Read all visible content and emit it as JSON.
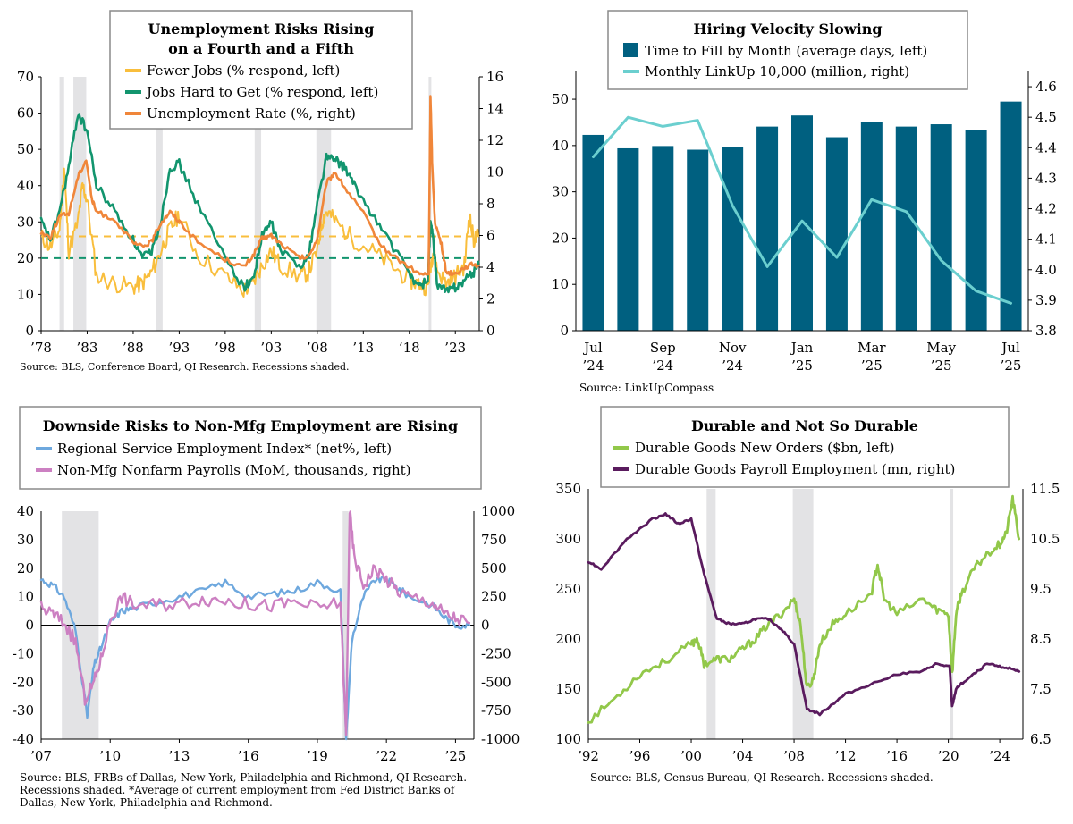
{
  "colors": {
    "yellow": "#F9BE3C",
    "green": "#12956E",
    "orange": "#F0863A",
    "teal": "#006080",
    "cyan": "#6BCFCF",
    "blue": "#6EA8DE",
    "pink": "#CC80C2",
    "lime": "#92C84A",
    "purple": "#5A1B5E",
    "recession": "#E3E3E5"
  },
  "chart_data": [
    {
      "type": "line",
      "title": "Unemployment Risks Rising on a Fourth and a Fifth",
      "title_lines": [
        "Unemployment Risks Rising",
        "on a Fourth and a Fifth"
      ],
      "x_ticks": [
        "’78",
        "’83",
        "’88",
        "’93",
        "’98",
        "’03",
        "’08",
        "’13",
        "’18",
        "’23"
      ],
      "x_range": [
        1978,
        2025.6
      ],
      "y_left_ticks": [
        "0",
        "10",
        "20",
        "30",
        "40",
        "50",
        "60",
        "70"
      ],
      "ylim_left": [
        0,
        70
      ],
      "y_right_ticks": [
        "0",
        "2",
        "4",
        "6",
        "8",
        "10",
        "12",
        "14",
        "16"
      ],
      "ylim_right": [
        0,
        16
      ],
      "recessions": [
        [
          1980.0,
          1980.5
        ],
        [
          1981.5,
          1982.9
        ],
        [
          1990.5,
          1991.2
        ],
        [
          2001.2,
          2001.9
        ],
        [
          2007.9,
          2009.5
        ],
        [
          2020.1,
          2020.3
        ]
      ],
      "reference_lines": [
        {
          "value": 26,
          "axis": "left",
          "series": "Fewer Jobs"
        },
        {
          "value": 20,
          "axis": "left",
          "series": "Jobs Hard to Get"
        }
      ],
      "series": [
        {
          "name": "Fewer Jobs (% respond, left)",
          "axis": "left",
          "x": [
            1978,
            1979,
            1980,
            1980.5,
            1981,
            1982,
            1982.5,
            1983,
            1984,
            1986,
            1988,
            1989,
            1990,
            1991,
            1992,
            1993,
            1995,
            1998,
            2000,
            2001,
            2002,
            2003,
            2004,
            2006,
            2007,
            2008,
            2008.5,
            2009,
            2010,
            2012,
            2014,
            2016,
            2018,
            2019,
            2020,
            2020.3,
            2020.6,
            2021,
            2022,
            2023,
            2024,
            2024.5,
            2025,
            2025.5
          ],
          "y": [
            26,
            23,
            28,
            45,
            22,
            30,
            40,
            36,
            15,
            13,
            12,
            13,
            16,
            22,
            28,
            32,
            21,
            15,
            11,
            13,
            18,
            22,
            18,
            15,
            16,
            22,
            30,
            33,
            30,
            25,
            22,
            18,
            14,
            13,
            12,
            18,
            22,
            17,
            13,
            15,
            18,
            32,
            25,
            26
          ]
        },
        {
          "name": "Jobs Hard to Get (% respond, left)",
          "axis": "left",
          "x": [
            1978,
            1979,
            1980,
            1981,
            1982,
            1983,
            1984,
            1986,
            1988,
            1989,
            1990,
            1991,
            1992,
            1993,
            1995,
            1998,
            2000,
            2001,
            2002,
            2003,
            2004,
            2006,
            2007,
            2008,
            2009,
            2010,
            2011,
            2012,
            2014,
            2016,
            2018,
            2019,
            2020,
            2020.3,
            2020.6,
            2021,
            2022,
            2023,
            2024,
            2025,
            2025.5
          ],
          "y": [
            30,
            25,
            33,
            45,
            60,
            55,
            40,
            33,
            25,
            20,
            22,
            30,
            45,
            46,
            35,
            20,
            12,
            14,
            26,
            30,
            22,
            18,
            20,
            35,
            48,
            47,
            45,
            40,
            32,
            24,
            16,
            12,
            14,
            30,
            25,
            13,
            11,
            12,
            14,
            16,
            19
          ]
        },
        {
          "name": "Unemployment Rate (%, right)",
          "axis": "right",
          "x": [
            1978,
            1979,
            1980,
            1981,
            1982,
            1982.9,
            1983.5,
            1984,
            1986,
            1988,
            1989,
            1990,
            1991,
            1992,
            1993,
            1995,
            1998,
            2000,
            2001,
            2002,
            2003,
            2004,
            2006,
            2007,
            2008,
            2009,
            2009.9,
            2011,
            2013,
            2015,
            2017,
            2019,
            2020.1,
            2020.3,
            2020.5,
            2020.8,
            2021.5,
            2022,
            2023,
            2024,
            2025,
            2025.5
          ],
          "y": [
            6.2,
            5.9,
            7.2,
            7.4,
            9.7,
            10.8,
            8.3,
            7.5,
            7.0,
            5.5,
            5.3,
            5.6,
            6.8,
            7.5,
            6.9,
            5.6,
            4.5,
            4.0,
            4.7,
            5.8,
            6.0,
            5.5,
            4.6,
            4.6,
            5.8,
            9.3,
            10.0,
            9.0,
            7.4,
            5.3,
            4.4,
            3.6,
            3.5,
            14.8,
            10.2,
            6.8,
            5.4,
            3.7,
            3.6,
            4.0,
            4.2,
            4.1
          ]
        }
      ],
      "source": "Source: BLS, Conference Board, QI Research. Recessions shaded."
    },
    {
      "type": "bar",
      "title": "Hiring Velocity Slowing",
      "x_ticks": [
        [
          "Jul",
          "’24"
        ],
        [
          "Sep",
          "’24"
        ],
        [
          "Nov",
          "’24"
        ],
        [
          "Jan",
          "’25"
        ],
        [
          "Mar",
          "’25"
        ],
        [
          "May",
          "’25"
        ],
        [
          "Jul",
          "’25"
        ]
      ],
      "categories": [
        "Jul ’24",
        "Aug ’24",
        "Sep ’24",
        "Oct ’24",
        "Nov ’24",
        "Dec ’24",
        "Jan ’25",
        "Feb ’25",
        "Mar ’25",
        "Apr ’25",
        "May ’25",
        "Jun ’25",
        "Jul ’25"
      ],
      "y_left_ticks": [
        "0",
        "10",
        "20",
        "30",
        "40",
        "50"
      ],
      "ylim_left": [
        0,
        56
      ],
      "y_right_ticks": [
        "3.8",
        "3.9",
        "4.0",
        "4.1",
        "4.2",
        "4.3",
        "4.4",
        "4.5",
        "4.6"
      ],
      "ylim_right": [
        3.8,
        4.65
      ],
      "series": [
        {
          "name": "Time to Fill by Month (average days, left)",
          "axis": "left",
          "kind": "bar",
          "values": [
            42.3,
            39.4,
            39.9,
            39.1,
            39.6,
            44.1,
            46.5,
            41.8,
            45.0,
            44.1,
            44.6,
            43.3,
            49.5
          ]
        },
        {
          "name": "Monthly LinkUp 10,000 (million, right)",
          "axis": "right",
          "kind": "line",
          "values": [
            4.37,
            4.5,
            4.47,
            4.49,
            4.21,
            4.01,
            4.16,
            4.04,
            4.23,
            4.19,
            4.03,
            3.93,
            3.89
          ]
        }
      ],
      "source": "Source: LinkUpCompass"
    },
    {
      "type": "line",
      "title": "Downside Risks to Non-Mfg Employment are Rising",
      "x_ticks": [
        "’07",
        "’10",
        "’13",
        "’16",
        "’19",
        "’22",
        "’25"
      ],
      "x_range": [
        2007,
        2025.8
      ],
      "y_left_ticks": [
        "40",
        "30",
        "20",
        "10",
        "0",
        "-10",
        "-20",
        "-30",
        "-40"
      ],
      "ylim_left": [
        -40,
        40
      ],
      "y_right_ticks": [
        "1000",
        "750",
        "500",
        "250",
        "0",
        "-250",
        "-500",
        "-750",
        "-1000"
      ],
      "ylim_right": [
        -1000,
        1000
      ],
      "recessions": [
        [
          2007.9,
          2009.5
        ],
        [
          2020.1,
          2020.35
        ]
      ],
      "series": [
        {
          "name": "Regional Service Employment Index* (net%, left)",
          "axis": "left",
          "x": [
            2007,
            2007.5,
            2008,
            2008.5,
            2009.0,
            2009.3,
            2009.6,
            2010,
            2010.5,
            2011,
            2012,
            2013,
            2014,
            2015,
            2016,
            2017,
            2018,
            2019,
            2020.0,
            2020.25,
            2020.5,
            2021,
            2021.5,
            2022,
            2022.5,
            2023,
            2024,
            2024.5,
            2025,
            2025.6
          ],
          "y": [
            16,
            14,
            10,
            -2,
            -32,
            -14,
            -8,
            1,
            5,
            6,
            8,
            10,
            12,
            15,
            10,
            11,
            12,
            15,
            12,
            -40,
            -5,
            10,
            16,
            16,
            13,
            10,
            7,
            3,
            0,
            0
          ]
        },
        {
          "name": "Non-Mfg Nonfarm Payrolls (MoM, thousands, right)",
          "axis": "right",
          "x": [
            2007,
            2007.5,
            2008,
            2008.5,
            2008.9,
            2009.3,
            2009.6,
            2010,
            2010.5,
            2011,
            2012,
            2013,
            2014,
            2015,
            2016,
            2017,
            2018,
            2019,
            2020.0,
            2020.25,
            2020.4,
            2020.6,
            2021,
            2021.5,
            2022,
            2022.5,
            2023,
            2024,
            2024.5,
            2025,
            2025.6
          ],
          "y": [
            150,
            100,
            20,
            -150,
            -650,
            -500,
            -300,
            50,
            250,
            180,
            180,
            190,
            230,
            220,
            180,
            170,
            200,
            150,
            200,
            -990,
            1000,
            600,
            350,
            500,
            400,
            300,
            250,
            200,
            100,
            60,
            20
          ]
        }
      ],
      "source_lines": [
        "Source: BLS, FRBs of Dallas, New York, Philadelphia and Richmond, QI Research.",
        "Recessions shaded. *Average of current employment from Fed District Banks of",
        "Dallas, New York, Philadelphia and Richmond."
      ]
    },
    {
      "type": "line",
      "title": "Durable and Not So Durable",
      "x_ticks": [
        "’92",
        "’96",
        "’00",
        "’04",
        "’08",
        "’12",
        "’16",
        "’20",
        "’24"
      ],
      "x_range": [
        1992,
        2025.8
      ],
      "y_left_ticks": [
        "100",
        "150",
        "200",
        "250",
        "300",
        "350"
      ],
      "ylim_left": [
        100,
        350
      ],
      "y_right_ticks": [
        "6.5",
        "7.5",
        "8.5",
        "9.5",
        "10.5",
        "11.5"
      ],
      "ylim_right": [
        6.5,
        11.5
      ],
      "recessions": [
        [
          2001.2,
          2001.9
        ],
        [
          2007.9,
          2009.5
        ],
        [
          2020.1,
          2020.3
        ]
      ],
      "series": [
        {
          "name": "Durable Goods New Orders ($bn, left)",
          "axis": "left",
          "x": [
            1992,
            1994,
            1996,
            1998,
            2000,
            2000.5,
            2001,
            2002,
            2003,
            2004,
            2005,
            2006,
            2007,
            2008,
            2008.5,
            2009.0,
            2009.5,
            2010,
            2011,
            2012,
            2014,
            2014.5,
            2015,
            2016,
            2018,
            2019,
            2020.0,
            2020.3,
            2020.6,
            2021,
            2022,
            2023,
            2024,
            2024.5,
            2025,
            2025.5
          ],
          "y": [
            118,
            140,
            165,
            178,
            195,
            200,
            175,
            180,
            180,
            190,
            200,
            215,
            225,
            240,
            215,
            150,
            160,
            195,
            215,
            225,
            245,
            275,
            240,
            225,
            240,
            230,
            225,
            165,
            225,
            245,
            270,
            285,
            295,
            305,
            340,
            300
          ]
        },
        {
          "name": "Durable Goods Payroll Employment (mn, right)",
          "axis": "right",
          "x": [
            1992,
            1993,
            1995,
            1997,
            1998,
            1999,
            2000,
            2001,
            2002,
            2003,
            2004,
            2005,
            2006,
            2007,
            2008,
            2009,
            2010,
            2011,
            2012,
            2014,
            2016,
            2018,
            2019,
            2020.1,
            2020.3,
            2020.6,
            2021,
            2022,
            2023,
            2024,
            2025,
            2025.5
          ],
          "y": [
            10.05,
            9.9,
            10.5,
            10.9,
            11.0,
            10.8,
            10.9,
            9.8,
            8.9,
            8.8,
            8.8,
            8.9,
            8.9,
            8.7,
            8.4,
            7.1,
            7.0,
            7.2,
            7.4,
            7.6,
            7.8,
            7.85,
            8.0,
            7.95,
            7.15,
            7.5,
            7.6,
            7.8,
            8.0,
            7.95,
            7.9,
            7.85
          ]
        }
      ],
      "source": "Source: BLS, Census Bureau, QI Research. Recessions shaded."
    }
  ]
}
